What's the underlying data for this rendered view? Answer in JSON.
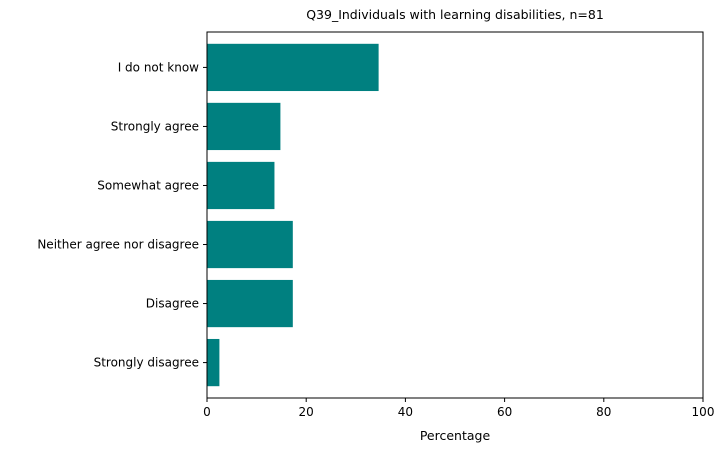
{
  "chart_data": {
    "type": "bar",
    "orientation": "horizontal",
    "title": "Q39_Individuals with learning disabilities, n=81",
    "xlabel": "Percentage",
    "ylabel": "",
    "xlim": [
      0,
      100
    ],
    "xticks": [
      0,
      20,
      40,
      60,
      80,
      100
    ],
    "categories": [
      "I do not know",
      "Strongly agree",
      "Somewhat agree",
      "Neither agree nor disagree",
      "Disagree",
      "Strongly disagree"
    ],
    "values": [
      34.6,
      14.8,
      13.6,
      17.3,
      17.3,
      2.5
    ],
    "bar_color": "#008080",
    "grid": false,
    "legend": "none"
  }
}
